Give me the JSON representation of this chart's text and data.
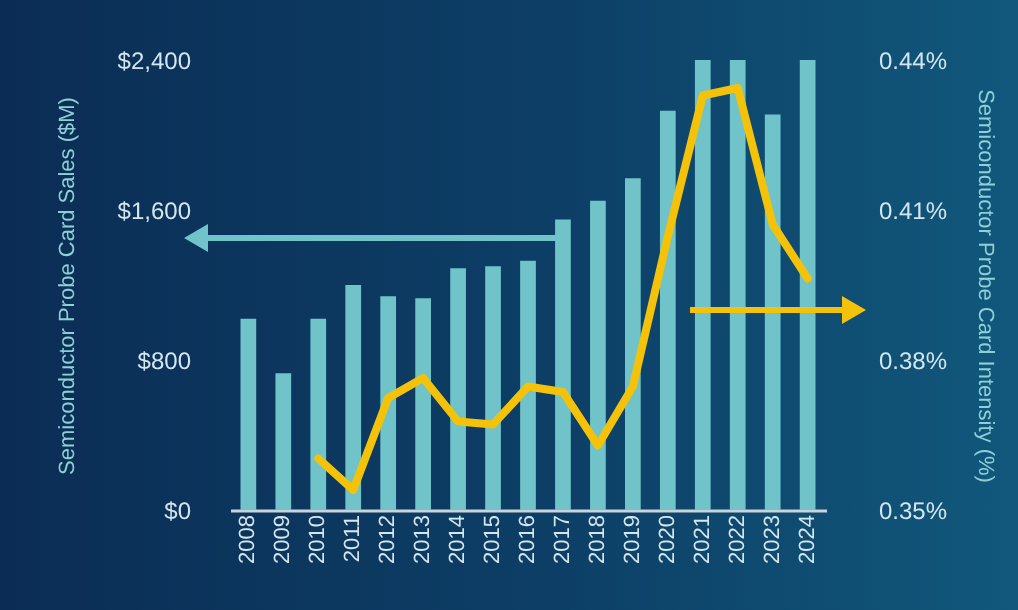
{
  "chart_data": {
    "type": "bar",
    "ylabel": "Semiconductor Probe Card Sales ($M)",
    "y2label": "Semiconductor Probe Card Intensity (%)",
    "categories": [
      "2008",
      "2009",
      "2010",
      "2011",
      "2012",
      "2013",
      "2014",
      "2015",
      "2016",
      "2017",
      "2018",
      "2019",
      "2020",
      "2021",
      "2022",
      "2023",
      "2024"
    ],
    "series": [
      {
        "color": "#6fc3c9",
        "values": [
          1020,
          730,
          1020,
          1200,
          1140,
          1130,
          1290,
          1300,
          1330,
          1550,
          1650,
          1770,
          2130,
          2400,
          2400,
          2110,
          2400
        ]
      },
      {
        "type": "line",
        "axis": "y2",
        "color": "#f5c20a",
        "values": [
          null,
          null,
          0.3603,
          0.354,
          0.3724,
          0.3764,
          0.3677,
          0.3671,
          0.3747,
          0.3736,
          0.3629,
          0.3747,
          0.4047,
          0.4329,
          0.4344,
          0.4071,
          0.3963
        ]
      }
    ],
    "ylim": [
      0,
      2400
    ],
    "yticks": [
      {
        "value": 0,
        "label": "$0"
      },
      {
        "value": 800,
        "label": "$800"
      },
      {
        "value": 1600,
        "label": "$1,600"
      },
      {
        "value": 2400,
        "label": "$2,400"
      }
    ],
    "y2lim": [
      0.35,
      0.44
    ],
    "y2ticks": [
      {
        "value": 0.35,
        "label": "0.35%"
      },
      {
        "value": 0.38,
        "label": "0.38%"
      },
      {
        "value": 0.41,
        "label": "0.41%"
      },
      {
        "value": 0.44,
        "label": "0.44%"
      }
    ],
    "grid": false
  }
}
